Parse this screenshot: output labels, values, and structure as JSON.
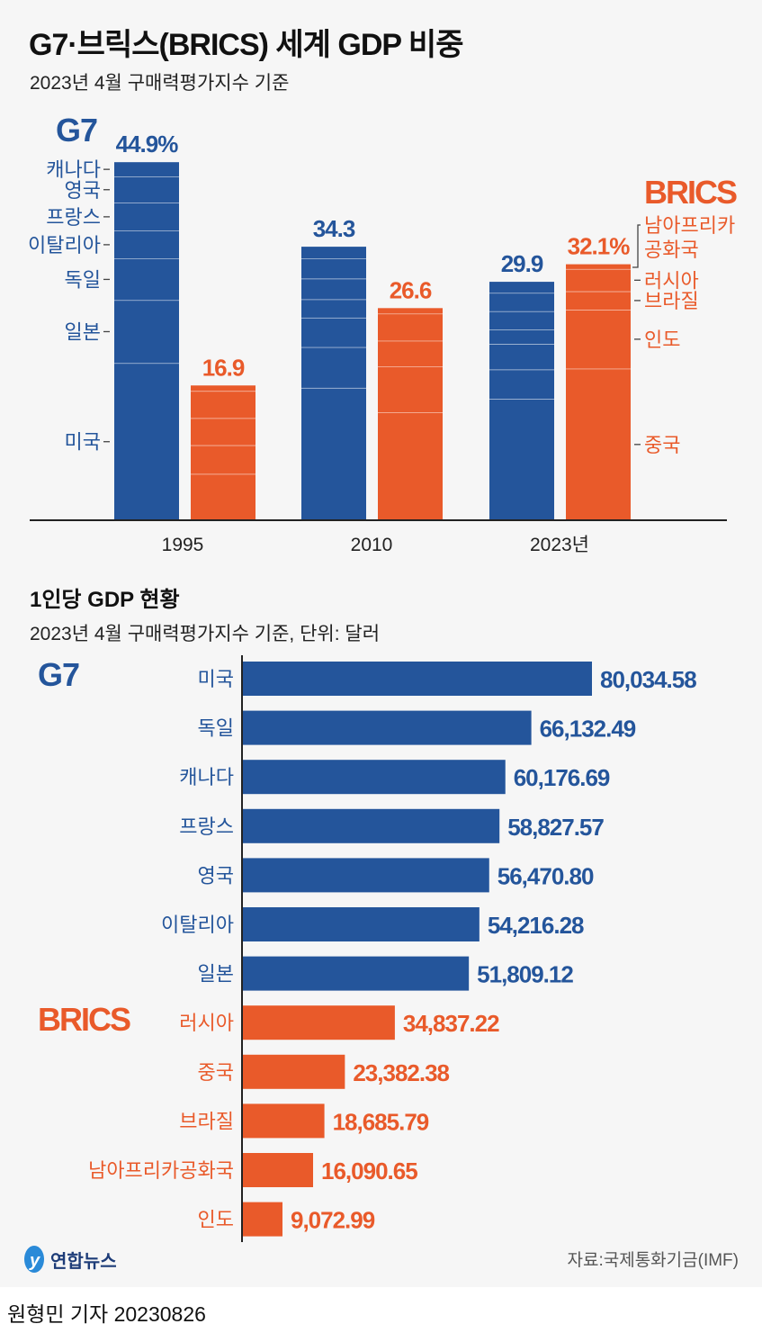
{
  "title": "G7·브릭스(BRICS) 세계 GDP 비중",
  "subtitle": "2023년 4월 구매력평가지수 기준",
  "colors": {
    "g7": "#24559b",
    "brics": "#e95a2a",
    "background": "#f6f6f6"
  },
  "chart_data": [
    {
      "type": "bar",
      "stacked": true,
      "title": "G7·브릭스(BRICS) 세계 GDP 비중",
      "subtitle": "2023년 4월 구매력평가지수 기준",
      "unit": "%",
      "categories": [
        "1995",
        "2010",
        "2023년"
      ],
      "groups": [
        {
          "name": "G7",
          "totals": [
            44.9,
            34.3,
            29.9
          ],
          "total_labels": [
            "44.9%",
            "34.3",
            "29.9"
          ],
          "segments_bottom_to_top": [
            "미국",
            "일본",
            "독일",
            "이탈리아",
            "프랑스",
            "영국",
            "캐나다"
          ],
          "series": [
            {
              "name": "미국",
              "values": [
                19.7,
                16.6,
                15.2
              ]
            },
            {
              "name": "일본",
              "values": [
                7.9,
                5.1,
                3.7
              ]
            },
            {
              "name": "독일",
              "values": [
                5.2,
                3.7,
                3.2
              ]
            },
            {
              "name": "이탈리아",
              "values": [
                3.5,
                2.3,
                1.8
              ]
            },
            {
              "name": "프랑스",
              "values": [
                3.5,
                2.6,
                2.3
              ]
            },
            {
              "name": "영국",
              "values": [
                3.3,
                2.5,
                2.3
              ]
            },
            {
              "name": "캐나다",
              "values": [
                1.8,
                1.5,
                1.4
              ]
            }
          ]
        },
        {
          "name": "BRICS",
          "totals": [
            16.9,
            26.6,
            32.1
          ],
          "total_labels": [
            "16.9",
            "26.6",
            "32.1%"
          ],
          "segments_bottom_to_top": [
            "중국",
            "인도",
            "브라질",
            "러시아",
            "남아프리카공화국"
          ],
          "series": [
            {
              "name": "중국",
              "values": [
                5.8,
                13.5,
                19.0
              ]
            },
            {
              "name": "인도",
              "values": [
                3.6,
                5.8,
                7.4
              ]
            },
            {
              "name": "브라질",
              "values": [
                3.4,
                3.2,
                2.3
              ]
            },
            {
              "name": "러시아",
              "values": [
                3.4,
                3.4,
                2.8
              ]
            },
            {
              "name": "남아프리카공화국",
              "values": [
                0.7,
                0.7,
                0.6
              ]
            }
          ]
        }
      ],
      "segment_labels": {
        "g7": [
          "캐나다",
          "영국",
          "프랑스",
          "이탈리아",
          "독일",
          "일본",
          "미국"
        ],
        "brics": [
          "남아프리카",
          "공화국",
          "러시아",
          "브라질",
          "인도",
          "중국"
        ]
      },
      "legend": {
        "g7": "G7",
        "brics": "BRICS"
      },
      "ylim": [
        0,
        50
      ],
      "grid": false
    },
    {
      "type": "bar",
      "orientation": "horizontal",
      "title": "1인당 GDP 현황",
      "subtitle": "2023년 4월 구매력평가지수 기준, 단위: 달러",
      "group_labels": [
        "G7",
        "BRICS"
      ],
      "categories": [
        "미국",
        "독일",
        "캐나다",
        "프랑스",
        "영국",
        "이탈리아",
        "일본",
        "러시아",
        "중국",
        "브라질",
        "남아프리카공화국",
        "인도"
      ],
      "groups": [
        "G7",
        "G7",
        "G7",
        "G7",
        "G7",
        "G7",
        "G7",
        "BRICS",
        "BRICS",
        "BRICS",
        "BRICS",
        "BRICS"
      ],
      "values": [
        80034.58,
        66132.49,
        60176.69,
        58827.57,
        56470.8,
        54216.28,
        51809.12,
        34837.22,
        23382.38,
        18685.79,
        16090.65,
        9072.99
      ],
      "value_labels": [
        "80,034.58",
        "66,132.49",
        "60,176.69",
        "58,827.57",
        "56,470.80",
        "54,216.28",
        "51,809.12",
        "34,837.22",
        "23,382.38",
        "18,685.79",
        "16,090.65",
        "9,072.99"
      ],
      "xlim": [
        0,
        80034.58
      ],
      "grid": false
    }
  ],
  "per_capita": {
    "title": "1인당 GDP 현황",
    "subtitle": "2023년 4월 구매력평가지수 기준, 단위: 달러"
  },
  "footer": {
    "logo": "연합뉴스",
    "source": "자료:국제통화기금(IMF)",
    "byline": "원형민 기자  20230826"
  }
}
